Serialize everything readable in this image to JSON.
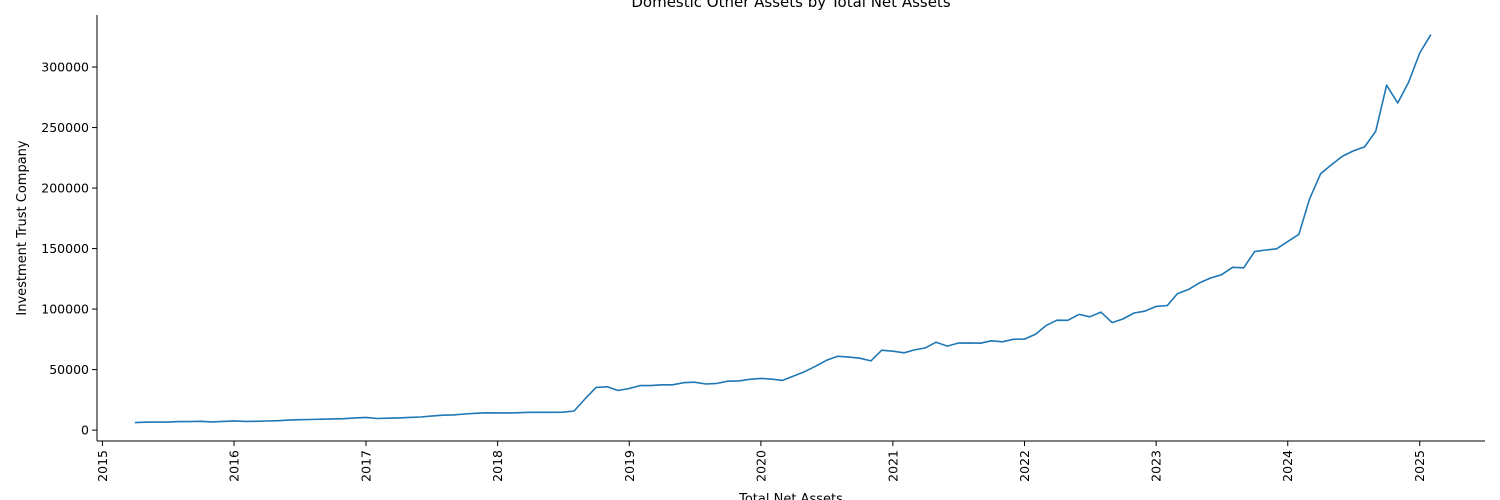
{
  "chart_data": {
    "type": "line",
    "title": "Domestic Other Assets by Total Net Assets",
    "xlabel": "Total Net Assets",
    "ylabel": "Investment Trust Company",
    "x_ticks": [
      "2015",
      "2016",
      "2017",
      "2018",
      "2019",
      "2020",
      "2021",
      "2022",
      "2023",
      "2024",
      "2025"
    ],
    "y_ticks": [
      0,
      50000,
      100000,
      150000,
      200000,
      250000,
      300000
    ],
    "xlim": [
      "2014-12-17",
      "2025-07-01"
    ],
    "ylim": [
      -9000,
      343000
    ],
    "grid": false,
    "legend": "none",
    "series_color": "#1f77b4",
    "series": [
      {
        "x": [
          "2015-04-01",
          "2015-05-01",
          "2015-06-01",
          "2015-07-01",
          "2015-08-01",
          "2015-09-01",
          "2015-10-01",
          "2015-11-01",
          "2015-12-01",
          "2016-01-01",
          "2016-02-01",
          "2016-03-01",
          "2016-04-01",
          "2016-05-01",
          "2016-06-01",
          "2016-07-01",
          "2016-08-01",
          "2016-09-01",
          "2016-10-01",
          "2016-11-01",
          "2016-12-01",
          "2017-01-01",
          "2017-02-01",
          "2017-03-01",
          "2017-04-01",
          "2017-05-01",
          "2017-06-01",
          "2017-07-01",
          "2017-08-01",
          "2017-09-01",
          "2017-10-01",
          "2017-11-01",
          "2017-12-01",
          "2018-01-01",
          "2018-02-01",
          "2018-03-01",
          "2018-04-01",
          "2018-05-01",
          "2018-06-01",
          "2018-07-01",
          "2018-08-01",
          "2018-09-01",
          "2018-10-01",
          "2018-11-01",
          "2018-12-01",
          "2019-01-01",
          "2019-02-01",
          "2019-03-01",
          "2019-04-01",
          "2019-05-01",
          "2019-06-01",
          "2019-07-01",
          "2019-08-01",
          "2019-09-01",
          "2019-10-01",
          "2019-11-01",
          "2019-12-01",
          "2020-01-01",
          "2020-02-01",
          "2020-03-01",
          "2020-04-01",
          "2020-05-01",
          "2020-06-01",
          "2020-07-01",
          "2020-08-01",
          "2020-09-01",
          "2020-10-01",
          "2020-11-01",
          "2020-12-01",
          "2021-01-01",
          "2021-02-01",
          "2021-03-01",
          "2021-04-01",
          "2021-05-01",
          "2021-06-01",
          "2021-07-01",
          "2021-08-01",
          "2021-09-01",
          "2021-10-01",
          "2021-11-01",
          "2021-12-01",
          "2022-01-01",
          "2022-02-01",
          "2022-03-01",
          "2022-04-01",
          "2022-05-01",
          "2022-06-01",
          "2022-07-01",
          "2022-08-01",
          "2022-09-01",
          "2022-10-01",
          "2022-11-01",
          "2022-12-01",
          "2023-01-01",
          "2023-02-01",
          "2023-03-01",
          "2023-04-01",
          "2023-05-01",
          "2023-06-01",
          "2023-07-01",
          "2023-08-01",
          "2023-09-01",
          "2023-10-01",
          "2023-11-01",
          "2023-12-01",
          "2024-01-01",
          "2024-02-01",
          "2024-03-01",
          "2024-04-01",
          "2024-05-01",
          "2024-06-01",
          "2024-07-01",
          "2024-08-01",
          "2024-09-01",
          "2024-10-01",
          "2024-11-01",
          "2024-12-01",
          "2025-01-01",
          "2025-02-01"
        ],
        "values": [
          6200,
          6500,
          6600,
          6600,
          7000,
          7000,
          7300,
          6800,
          7200,
          7600,
          7200,
          7300,
          7500,
          7800,
          8300,
          8600,
          8800,
          9000,
          9300,
          9400,
          10100,
          10500,
          9600,
          9800,
          10100,
          10500,
          10800,
          11600,
          12300,
          12600,
          13300,
          13900,
          14300,
          14200,
          14200,
          14400,
          14700,
          14700,
          14700,
          14800,
          15800,
          26000,
          35300,
          35800,
          32700,
          34400,
          36900,
          36800,
          37400,
          37400,
          39200,
          39600,
          38100,
          38600,
          40400,
          40700,
          42000,
          42700,
          42100,
          41100,
          44700,
          48300,
          52800,
          57700,
          61000,
          60300,
          59400,
          57200,
          66000,
          65200,
          63900,
          66200,
          67900,
          72600,
          69400,
          71900,
          72100,
          71800,
          73800,
          73000,
          75000,
          75200,
          79300,
          86300,
          90800,
          90700,
          95600,
          93600,
          97500,
          88800,
          91800,
          96800,
          98300,
          102200,
          103000,
          112700,
          116300,
          121600,
          125700,
          128300,
          134500,
          134100,
          147500,
          148800,
          149800,
          155800,
          161800,
          190700,
          211800,
          219200,
          226400,
          230700,
          234000,
          246900,
          285000,
          270300,
          287400,
          311600,
          326800
        ]
      }
    ]
  }
}
